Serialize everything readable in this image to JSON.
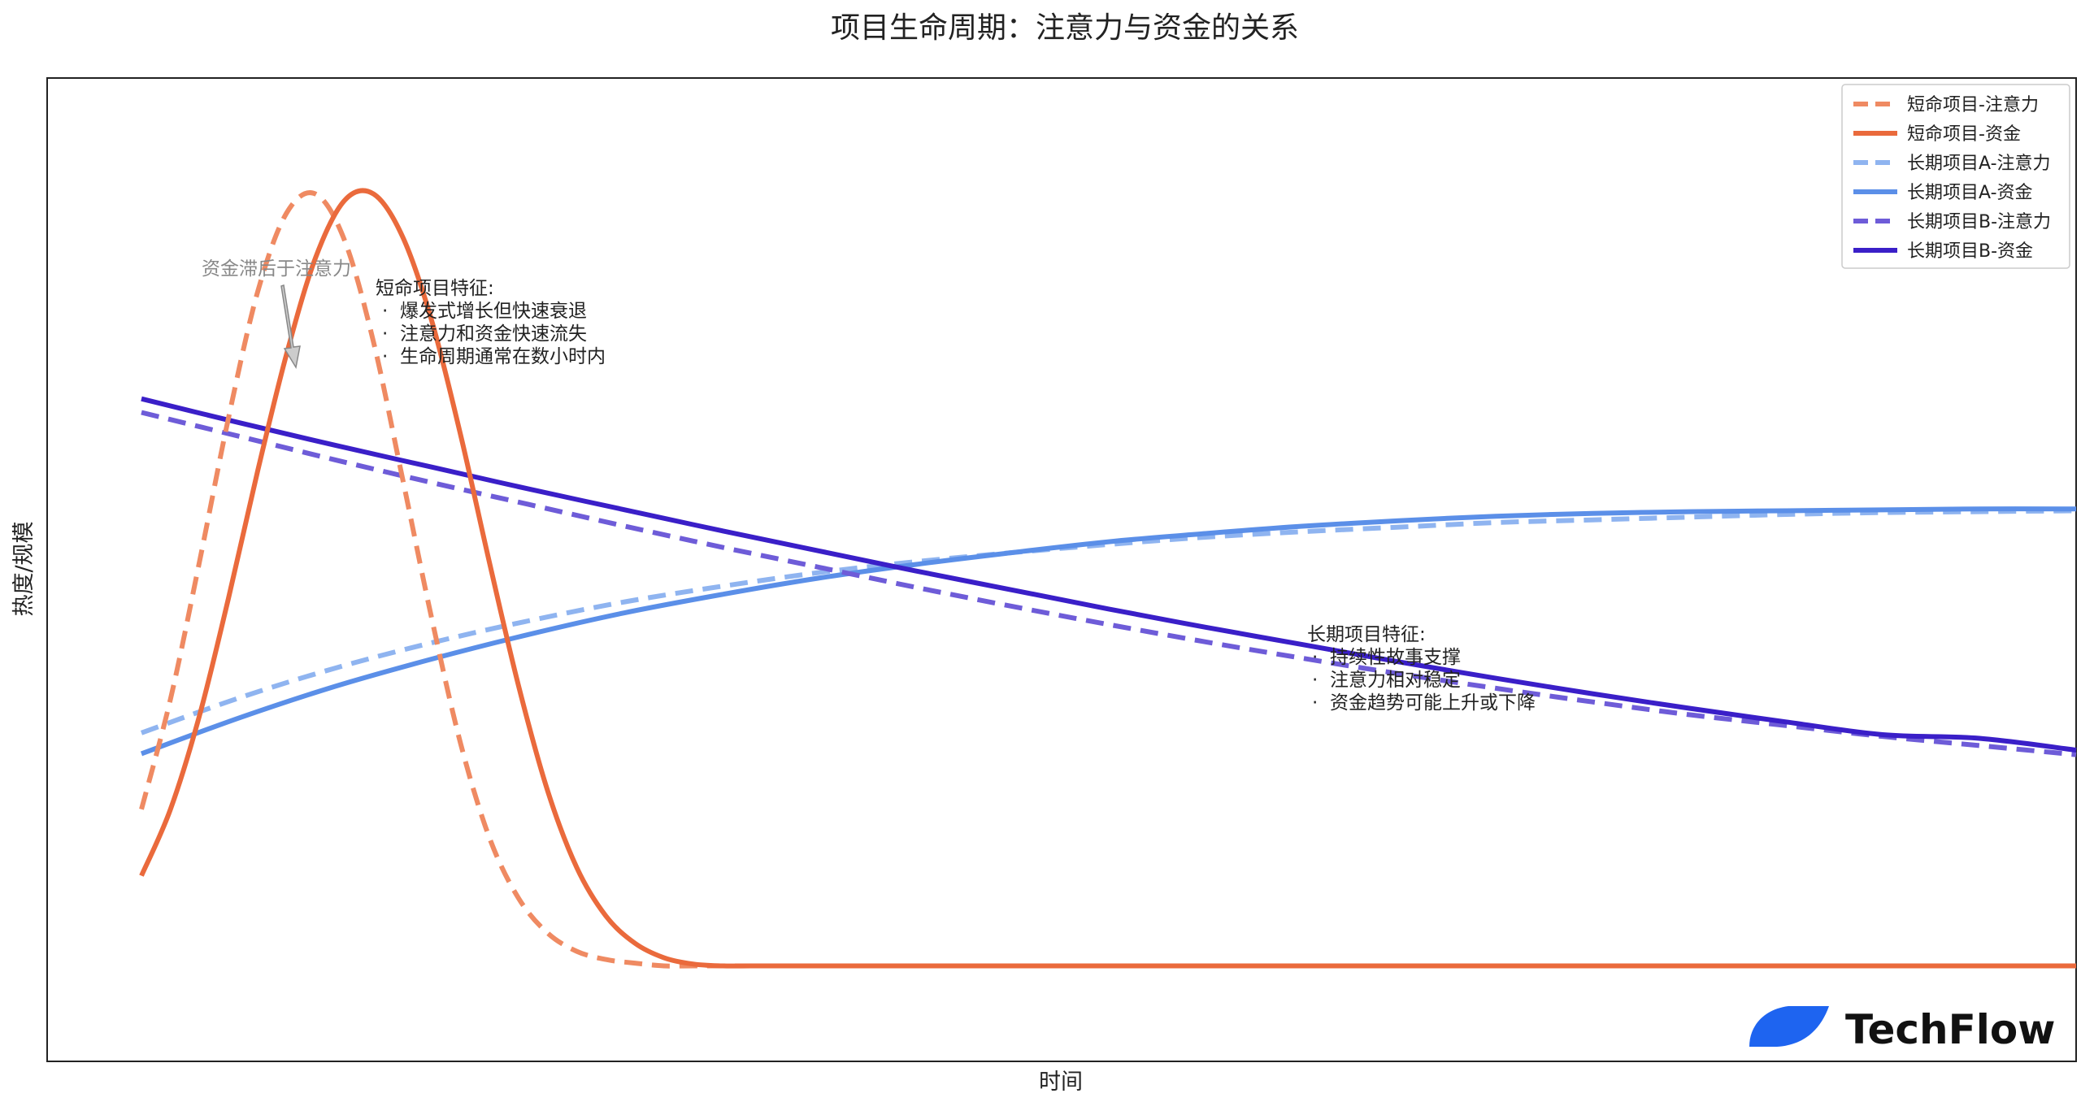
{
  "chart_data": {
    "type": "line",
    "title": "项目生命周期：注意力与资金的关系",
    "xlabel": "时间",
    "ylabel": "热度/规模",
    "xlim": [
      0,
      100
    ],
    "ylim": [
      0,
      100
    ],
    "axis_ticks_shown": false,
    "grid": false,
    "legend_position": "top-right",
    "series": [
      {
        "name": "短命项目-注意力",
        "color": "#EF8A62",
        "dash": true,
        "x": [
          0,
          1.5,
          3,
          4.5,
          6,
          7.5,
          9,
          10.5,
          12,
          13.5,
          15,
          16.5,
          18,
          19.5,
          21,
          22.5,
          24,
          25.5,
          27,
          28.5,
          30,
          31.5,
          33,
          35,
          40,
          50,
          60,
          70,
          80,
          90,
          100
        ],
        "y": [
          21.8,
          33.9,
          49.0,
          64.8,
          78.6,
          87.3,
          89.4,
          84.3,
          73.1,
          58.1,
          42.8,
          29.0,
          18.6,
          12.0,
          8.2,
          6.2,
          5.3,
          4.9,
          4.6,
          4.6,
          4.6,
          4.6,
          4.6,
          4.6,
          4.6,
          4.6,
          4.6,
          4.6,
          4.6,
          4.6,
          4.6
        ]
      },
      {
        "name": "短命项目-资金",
        "color": "#EA6A3C",
        "dash": false,
        "x": [
          0,
          1.5,
          3,
          4.5,
          6,
          7.5,
          9,
          10.5,
          12,
          13.5,
          15,
          16.5,
          18,
          19.5,
          21,
          22.5,
          24,
          25.5,
          27,
          28.5,
          30,
          31.5,
          33,
          35,
          40,
          50,
          60,
          70,
          80,
          90,
          100
        ],
        "y": [
          14.5,
          21.8,
          32.1,
          45.0,
          58.9,
          71.8,
          82.4,
          88.7,
          89.4,
          84.7,
          75.5,
          62.9,
          48.8,
          35.3,
          23.8,
          15.4,
          10.1,
          7.1,
          5.5,
          4.8,
          4.6,
          4.6,
          4.6,
          4.6,
          4.6,
          4.6,
          4.6,
          4.6,
          4.6,
          4.6,
          4.6
        ]
      },
      {
        "name": "长期项目A-注意力",
        "color": "#8FB4F0",
        "dash": true,
        "x": [
          0,
          5,
          10,
          15,
          20,
          25,
          30,
          35,
          40,
          45,
          50,
          55,
          60,
          65,
          70,
          75,
          80,
          85,
          90,
          95,
          100
        ],
        "y": [
          30.2,
          34.0,
          37.3,
          40.1,
          42.5,
          44.6,
          46.3,
          47.8,
          49.0,
          50.0,
          50.9,
          51.7,
          52.3,
          52.8,
          53.3,
          53.6,
          53.9,
          54.2,
          54.4,
          54.5,
          54.6
        ]
      },
      {
        "name": "长期项目A-资金",
        "color": "#5B8FE8",
        "dash": false,
        "x": [
          0,
          5,
          10,
          15,
          20,
          25,
          30,
          35,
          40,
          45,
          50,
          55,
          60,
          65,
          70,
          75,
          80,
          85,
          90,
          95,
          100
        ],
        "y": [
          27.9,
          31.8,
          35.3,
          38.3,
          41.0,
          43.4,
          45.4,
          47.2,
          48.7,
          50.0,
          51.2,
          52.1,
          52.9,
          53.5,
          54.0,
          54.3,
          54.5,
          54.6,
          54.7,
          54.8,
          54.8
        ]
      },
      {
        "name": "长期项目B-注意力",
        "color": "#6E5CD8",
        "dash": true,
        "x": [
          0,
          5,
          10,
          15,
          20,
          25,
          30,
          35,
          40,
          45,
          50,
          55,
          60,
          65,
          70,
          75,
          80,
          85,
          90,
          95,
          100
        ],
        "y": [
          65.4,
          62.8,
          60.2,
          57.7,
          55.3,
          52.9,
          50.6,
          48.4,
          46.2,
          44.1,
          42.1,
          40.2,
          38.4,
          36.7,
          35.1,
          33.6,
          32.2,
          31.0,
          29.8,
          28.8,
          27.8
        ]
      },
      {
        "name": "长期项目B-资金",
        "color": "#3A1FC8",
        "dash": false,
        "x": [
          0,
          5,
          10,
          15,
          20,
          25,
          30,
          35,
          40,
          45,
          50,
          55,
          60,
          65,
          70,
          75,
          80,
          85,
          90,
          95,
          100
        ],
        "y": [
          66.9,
          64.3,
          61.8,
          59.4,
          57.0,
          54.7,
          52.4,
          50.2,
          48.0,
          45.9,
          43.8,
          41.8,
          39.9,
          38.0,
          36.2,
          34.5,
          32.9,
          31.4,
          30.0,
          29.6,
          28.3
        ]
      }
    ],
    "annotations": {
      "arrow_note": "资金滞后于注意力",
      "short_box": {
        "title": "短命项目特征:",
        "bullets": [
          "爆发式增长但快速衰退",
          "注意力和资金快速流失",
          "生命周期通常在数小时内"
        ]
      },
      "long_box": {
        "title": "长期项目特征:",
        "bullets": [
          "持续性故事支撑",
          "注意力相对稳定",
          "资金趋势可能上升或下降"
        ]
      },
      "bullet_mark": "·"
    }
  },
  "watermark": {
    "text": "TechFlow",
    "logo_color": "#1E64F0"
  }
}
